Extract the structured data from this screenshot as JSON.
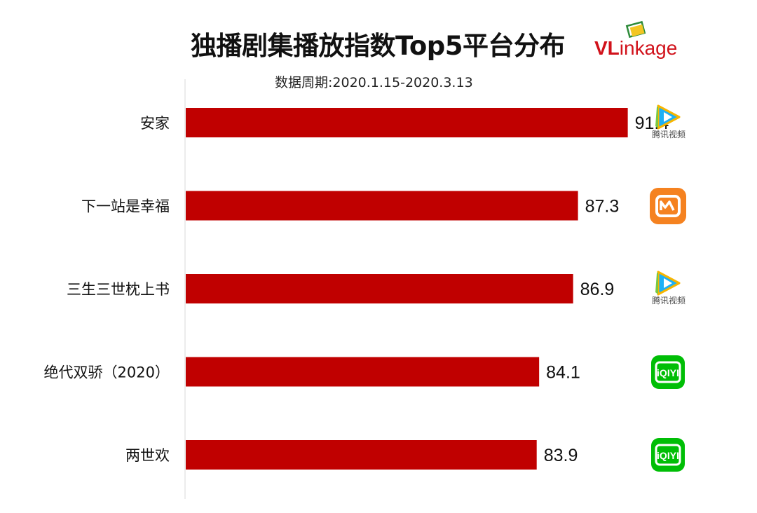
{
  "header": {
    "title": "独播剧集播放指数Top5平台分布",
    "subtitle": "数据周期:2020.1.15-2020.3.13",
    "brand_primary": "VL",
    "brand_secondary": "inkage"
  },
  "chart_data": {
    "type": "bar",
    "orientation": "horizontal",
    "title": "独播剧集播放指数Top5平台分布",
    "subtitle": "数据周期:2020.1.15-2020.3.13",
    "categories": [
      "安家",
      "下一站是幸福",
      "三生三世枕上书",
      "绝代双骄（2020）",
      "两世欢"
    ],
    "values": [
      91.4,
      87.3,
      86.9,
      84.1,
      83.9
    ],
    "value_labels": [
      "91.4",
      "87.3",
      "86.9",
      "84.1",
      "83.9"
    ],
    "xlim": [
      55,
      95
    ],
    "bar_color": "#c00000",
    "grid": false,
    "legend": "none"
  },
  "platforms": [
    {
      "icon": "tencent-video-icon",
      "caption": "腾讯视频",
      "color": "#1cb0f6"
    },
    {
      "icon": "mgtv-icon",
      "caption": "",
      "color": "#f58220"
    },
    {
      "icon": "tencent-video-icon",
      "caption": "腾讯视频",
      "color": "#1cb0f6"
    },
    {
      "icon": "iqiyi-icon",
      "caption": "",
      "color": "#00be06"
    },
    {
      "icon": "iqiyi-icon",
      "caption": "",
      "color": "#00be06"
    }
  ]
}
